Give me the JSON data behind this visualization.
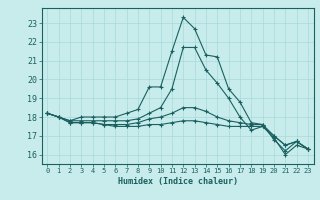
{
  "title": "",
  "xlabel": "Humidex (Indice chaleur)",
  "xlim": [
    -0.5,
    23.5
  ],
  "ylim": [
    15.5,
    23.8
  ],
  "yticks": [
    16,
    17,
    18,
    19,
    20,
    21,
    22,
    23
  ],
  "xticks": [
    0,
    1,
    2,
    3,
    4,
    5,
    6,
    7,
    8,
    9,
    10,
    11,
    12,
    13,
    14,
    15,
    16,
    17,
    18,
    19,
    20,
    21,
    22,
    23
  ],
  "bg_color": "#c8ecec",
  "grid_color": "#a8d8d8",
  "line_color": "#1a6060",
  "curves": [
    [
      18.2,
      18.0,
      17.8,
      18.0,
      18.0,
      18.0,
      18.0,
      18.2,
      18.4,
      19.6,
      19.6,
      21.5,
      23.3,
      22.7,
      21.3,
      21.2,
      19.5,
      18.8,
      17.7,
      17.6,
      16.8,
      16.2,
      16.7,
      16.3
    ],
    [
      18.2,
      18.0,
      17.8,
      17.8,
      17.8,
      17.8,
      17.8,
      17.8,
      17.9,
      18.2,
      18.5,
      19.5,
      21.7,
      21.7,
      20.5,
      19.8,
      19.0,
      18.0,
      17.3,
      17.5,
      16.9,
      16.0,
      16.5,
      16.3
    ],
    [
      18.2,
      18.0,
      17.7,
      17.7,
      17.7,
      17.6,
      17.6,
      17.6,
      17.7,
      17.9,
      18.0,
      18.2,
      18.5,
      18.5,
      18.3,
      18.0,
      17.8,
      17.7,
      17.6,
      17.6,
      17.0,
      16.5,
      16.7,
      16.3
    ],
    [
      18.2,
      18.0,
      17.7,
      17.7,
      17.7,
      17.6,
      17.5,
      17.5,
      17.5,
      17.6,
      17.6,
      17.7,
      17.8,
      17.8,
      17.7,
      17.6,
      17.5,
      17.5,
      17.5,
      17.5,
      17.0,
      16.5,
      16.7,
      16.3
    ]
  ]
}
